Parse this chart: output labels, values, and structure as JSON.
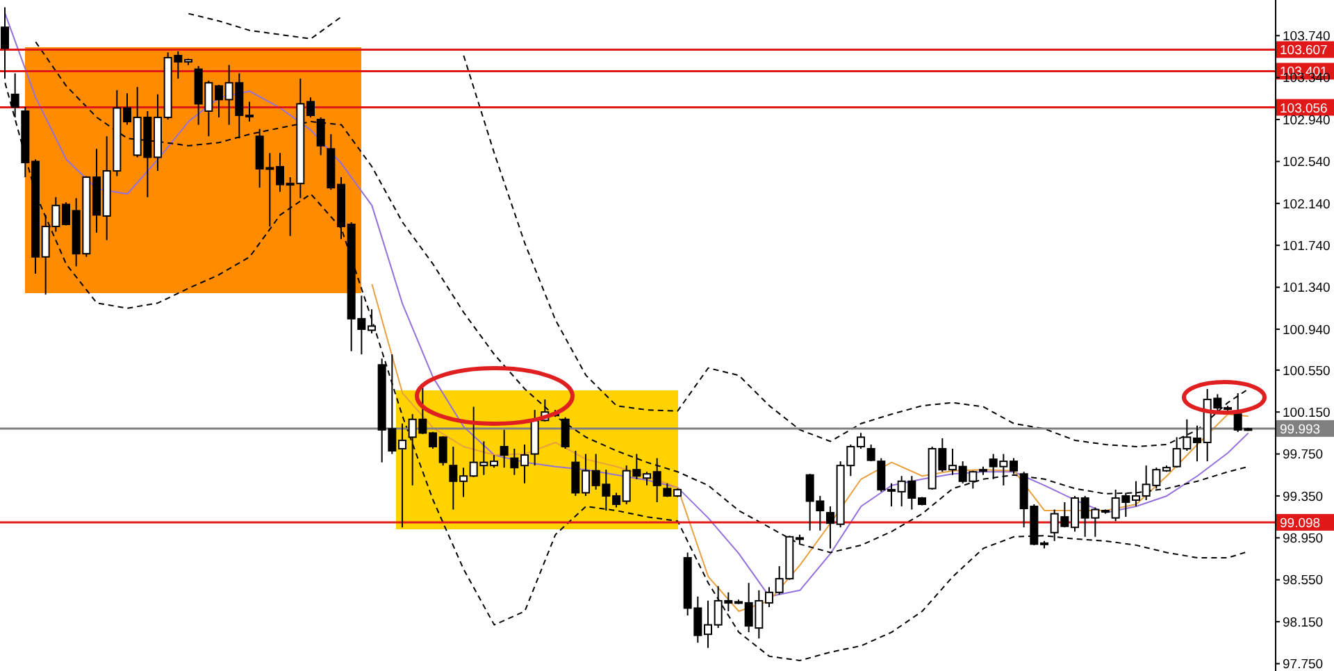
{
  "chart_data": {
    "type": "candlestick",
    "color": "#000000",
    "categories": [
      null,
      null,
      null,
      null,
      null,
      null,
      null,
      null,
      null,
      null,
      null,
      null,
      null,
      null,
      null,
      null,
      null,
      null,
      null,
      null,
      null,
      null,
      null,
      null,
      null,
      null,
      null,
      null,
      null,
      null,
      null,
      null,
      null,
      null,
      null,
      null,
      null,
      null,
      null,
      null,
      null,
      null,
      null,
      null,
      null,
      null,
      null,
      null,
      null,
      null,
      null,
      null,
      null,
      null,
      null,
      null,
      null,
      null,
      null,
      null,
      null,
      null,
      null,
      null,
      null,
      null,
      null,
      null,
      null,
      null,
      null,
      null,
      null,
      null,
      null,
      null,
      null,
      null,
      null,
      null,
      null,
      null,
      null,
      null,
      null,
      null,
      null,
      null,
      null,
      null,
      null,
      null,
      null,
      null,
      null,
      null,
      null,
      null,
      null,
      null,
      null,
      null,
      null,
      null,
      null,
      null,
      null,
      null,
      null,
      null,
      null,
      null,
      null,
      null,
      null,
      null,
      null,
      null,
      null,
      null,
      null,
      null,
      null
    ],
    "ohlc": [
      [
        103.82,
        104.01,
        103.33,
        103.62
      ],
      [
        103.18,
        103.38,
        102.96,
        103.06
      ],
      [
        103.02,
        103.06,
        102.39,
        102.53
      ],
      [
        102.54,
        102.56,
        101.47,
        101.63
      ],
      [
        101.63,
        102.03,
        101.27,
        101.92
      ],
      [
        101.92,
        102.2,
        101.87,
        102.12
      ],
      [
        102.13,
        102.15,
        101.93,
        101.94
      ],
      [
        102.07,
        102.19,
        101.54,
        101.66
      ],
      [
        101.66,
        102.4,
        101.63,
        102.39
      ],
      [
        102.39,
        102.66,
        101.86,
        102.03
      ],
      [
        102.02,
        102.78,
        101.79,
        102.45
      ],
      [
        102.45,
        103.22,
        102.4,
        103.05
      ],
      [
        103.05,
        103.19,
        102.89,
        102.92
      ],
      [
        102.6,
        103.25,
        102.58,
        102.96
      ],
      [
        102.96,
        103.02,
        102.2,
        102.58
      ],
      [
        102.58,
        103.18,
        102.45,
        102.96
      ],
      [
        102.96,
        103.58,
        102.94,
        103.53
      ],
      [
        103.55,
        103.59,
        103.33,
        103.49
      ],
      [
        103.49,
        103.52,
        103.46,
        103.51
      ],
      [
        103.42,
        103.45,
        102.89,
        103.09
      ],
      [
        103.02,
        103.31,
        102.78,
        103.29
      ],
      [
        103.26,
        103.27,
        102.96,
        103.13
      ],
      [
        103.13,
        103.46,
        102.89,
        103.29
      ],
      [
        103.29,
        103.38,
        102.76,
        102.98
      ],
      [
        102.98,
        103.11,
        102.92,
        102.97
      ],
      [
        102.78,
        102.85,
        102.29,
        102.47
      ],
      [
        102.47,
        102.62,
        101.92,
        102.48
      ],
      [
        102.49,
        102.62,
        102.25,
        102.32
      ],
      [
        102.32,
        102.39,
        101.83,
        102.33
      ],
      [
        102.33,
        103.33,
        102.19,
        103.09
      ],
      [
        103.11,
        103.15,
        102.96,
        102.98
      ],
      [
        102.94,
        102.96,
        102.6,
        102.69
      ],
      [
        102.66,
        102.8,
        102.27,
        102.29
      ],
      [
        102.32,
        102.39,
        101.8,
        101.92
      ],
      [
        101.94,
        101.96,
        100.73,
        101.04
      ],
      [
        101.04,
        101.26,
        100.7,
        100.94
      ],
      [
        100.93,
        101.13,
        100.9,
        100.97
      ],
      [
        100.6,
        100.66,
        99.67,
        99.98
      ],
      [
        99.99,
        100.7,
        99.75,
        99.78
      ],
      [
        99.8,
        100.04,
        99.05,
        99.88
      ],
      [
        99.91,
        100.13,
        99.45,
        100.08
      ],
      [
        100.08,
        100.41,
        99.94,
        99.95
      ],
      [
        99.95,
        99.96,
        99.8,
        99.82
      ],
      [
        99.91,
        99.92,
        99.64,
        99.67
      ],
      [
        99.64,
        99.82,
        99.22,
        99.49
      ],
      [
        99.49,
        99.62,
        99.34,
        99.54
      ],
      [
        99.54,
        100.2,
        99.53,
        99.67
      ],
      [
        99.64,
        99.87,
        99.55,
        99.67
      ],
      [
        99.64,
        99.74,
        99.62,
        99.68
      ],
      [
        99.82,
        99.98,
        99.62,
        99.74
      ],
      [
        99.71,
        99.8,
        99.55,
        99.62
      ],
      [
        99.64,
        99.84,
        99.47,
        99.74
      ],
      [
        99.75,
        100.17,
        99.64,
        100.07
      ],
      [
        100.07,
        100.27,
        100.06,
        100.15
      ],
      [
        100.13,
        100.17,
        100.11,
        100.12
      ],
      [
        100.08,
        100.1,
        99.8,
        99.82
      ],
      [
        99.67,
        99.78,
        99.35,
        99.38
      ],
      [
        99.38,
        99.75,
        99.35,
        99.59
      ],
      [
        99.59,
        99.75,
        99.41,
        99.45
      ],
      [
        99.46,
        99.6,
        99.21,
        99.35
      ],
      [
        99.35,
        99.38,
        99.24,
        99.27
      ],
      [
        99.3,
        99.64,
        99.27,
        99.59
      ],
      [
        99.6,
        99.75,
        99.51,
        99.54
      ],
      [
        99.52,
        99.58,
        99.45,
        99.56
      ],
      [
        99.58,
        99.71,
        99.29,
        99.45
      ],
      [
        99.42,
        99.47,
        99.34,
        99.35
      ],
      [
        99.35,
        99.42,
        99.34,
        99.41
      ],
      [
        98.76,
        98.81,
        98.21,
        98.28
      ],
      [
        98.28,
        98.39,
        97.95,
        98.02
      ],
      [
        98.03,
        98.35,
        97.9,
        98.12
      ],
      [
        98.12,
        98.49,
        98.09,
        98.35
      ],
      [
        98.35,
        98.43,
        98.25,
        98.33
      ],
      [
        98.33,
        98.36,
        98.32,
        98.34
      ],
      [
        98.33,
        98.52,
        98.05,
        98.11
      ],
      [
        98.09,
        98.45,
        97.99,
        98.35
      ],
      [
        98.33,
        98.48,
        98.29,
        98.43
      ],
      [
        98.43,
        98.68,
        98.41,
        98.56
      ],
      [
        98.56,
        98.97,
        98.55,
        98.96
      ],
      [
        98.94,
        98.98,
        98.89,
        98.95
      ],
      [
        99.55,
        99.56,
        99.02,
        99.3
      ],
      [
        99.3,
        99.35,
        99.02,
        99.21
      ],
      [
        99.19,
        99.25,
        98.85,
        99.09
      ],
      [
        99.08,
        99.68,
        99.05,
        99.64
      ],
      [
        99.64,
        99.84,
        99.54,
        99.82
      ],
      [
        99.82,
        99.95,
        99.8,
        99.91
      ],
      [
        99.8,
        99.84,
        99.68,
        99.69
      ],
      [
        99.68,
        99.71,
        99.39,
        99.41
      ],
      [
        99.41,
        99.47,
        99.25,
        99.4
      ],
      [
        99.39,
        99.54,
        99.25,
        99.49
      ],
      [
        99.49,
        99.54,
        99.22,
        99.33
      ],
      [
        99.33,
        99.34,
        99.26,
        99.27
      ],
      [
        99.42,
        99.82,
        99.41,
        99.8
      ],
      [
        99.8,
        99.9,
        99.58,
        99.6
      ],
      [
        99.6,
        99.8,
        99.55,
        99.64
      ],
      [
        99.63,
        99.68,
        99.47,
        99.49
      ],
      [
        99.49,
        99.59,
        99.42,
        99.58
      ],
      [
        99.59,
        99.63,
        99.55,
        99.6
      ],
      [
        99.7,
        99.75,
        99.51,
        99.63
      ],
      [
        99.63,
        99.75,
        99.45,
        99.68
      ],
      [
        99.68,
        99.71,
        99.56,
        99.59
      ],
      [
        99.56,
        99.58,
        99.05,
        99.23
      ],
      [
        99.25,
        99.27,
        98.88,
        98.89
      ],
      [
        98.89,
        98.92,
        98.85,
        98.9
      ],
      [
        99.0,
        99.22,
        98.92,
        99.18
      ],
      [
        99.15,
        99.29,
        99.05,
        99.06
      ],
      [
        99.05,
        99.35,
        99.01,
        99.33
      ],
      [
        99.33,
        99.35,
        98.96,
        99.14
      ],
      [
        99.14,
        99.24,
        98.96,
        99.22
      ],
      [
        99.21,
        99.22,
        99.18,
        99.2
      ],
      [
        99.14,
        99.41,
        99.11,
        99.33
      ],
      [
        99.35,
        99.38,
        99.15,
        99.29
      ],
      [
        99.31,
        99.49,
        99.25,
        99.35
      ],
      [
        99.35,
        99.64,
        99.31,
        99.46
      ],
      [
        99.45,
        99.62,
        99.42,
        99.6
      ],
      [
        99.59,
        99.64,
        99.58,
        99.62
      ],
      [
        99.63,
        99.91,
        99.62,
        99.8
      ],
      [
        99.8,
        100.08,
        99.78,
        99.91
      ],
      [
        99.9,
        100.02,
        99.68,
        99.86
      ],
      [
        99.86,
        100.37,
        99.68,
        100.27
      ],
      [
        100.28,
        100.32,
        100.16,
        100.19
      ],
      [
        100.19,
        100.21,
        100.15,
        100.18
      ],
      [
        100.13,
        100.33,
        99.96,
        99.98
      ],
      [
        99.98,
        100.0,
        99.97,
        99.99
      ]
    ],
    "series": [
      {
        "type": "line",
        "color": "#9370db",
        "line_style": "solid",
        "values": [
          103.95,
          null,
          null,
          103.15,
          null,
          null,
          102.56,
          null,
          null,
          102.28,
          null,
          null,
          102.23,
          null,
          null,
          102.56,
          null,
          null,
          102.92,
          null,
          null,
          103.15,
          null,
          null,
          103.21,
          null,
          null,
          103.05,
          null,
          null,
          102.84,
          null,
          null,
          102.52,
          null,
          null,
          102.12,
          null,
          null,
          101.18,
          null,
          null,
          100.48,
          null,
          null,
          100.01,
          null,
          null,
          99.74,
          null,
          null,
          99.67,
          null,
          null,
          99.63,
          null,
          null,
          99.6,
          null,
          null,
          99.55,
          null,
          null,
          99.5,
          null,
          null,
          99.43,
          null,
          null,
          99.14,
          null,
          null,
          98.8,
          null,
          null,
          98.39,
          null,
          null,
          98.45,
          null,
          null,
          98.8,
          null,
          null,
          99.25,
          null,
          null,
          99.45,
          null,
          null,
          99.51,
          null,
          null,
          99.56,
          null,
          null,
          99.58,
          null,
          null,
          99.58,
          null,
          null,
          99.45,
          null,
          null,
          99.31,
          null,
          null,
          99.19,
          null,
          null,
          99.25,
          null,
          null,
          99.35,
          null,
          null,
          99.54,
          null,
          null,
          99.76,
          null,
          99.95
        ]
      },
      {
        "type": "line",
        "color": "#e8a040",
        "line_style": "solid",
        "values": [
          null,
          null,
          null,
          null,
          null,
          null,
          null,
          null,
          null,
          null,
          null,
          null,
          null,
          null,
          null,
          null,
          null,
          null,
          null,
          null,
          null,
          null,
          null,
          null,
          null,
          null,
          null,
          null,
          null,
          null,
          null,
          null,
          null,
          null,
          null,
          null,
          101.37,
          null,
          null,
          100.33,
          null,
          null,
          100.0,
          null,
          null,
          99.82,
          null,
          null,
          99.74,
          null,
          null,
          99.75,
          null,
          null,
          99.86,
          null,
          null,
          99.7,
          null,
          null,
          99.63,
          null,
          null,
          99.54,
          null,
          null,
          99.43,
          null,
          null,
          98.58,
          null,
          null,
          98.25,
          null,
          null,
          98.35,
          null,
          null,
          98.69,
          null,
          null,
          99.09,
          null,
          null,
          99.51,
          null,
          null,
          99.67,
          null,
          null,
          99.54,
          null,
          null,
          99.59,
          null,
          null,
          99.6,
          null,
          null,
          99.59,
          null,
          null,
          99.21,
          null,
          null,
          99.21,
          null,
          null,
          99.21,
          null,
          null,
          99.27,
          null,
          null,
          99.54,
          null,
          null,
          99.84,
          null,
          null,
          100.13,
          null,
          100.11
        ]
      },
      {
        "type": "line",
        "color": "#000000",
        "line_style": "dashed",
        "values": [
          null,
          null,
          null,
          null,
          null,
          null,
          null,
          null,
          null,
          null,
          null,
          null,
          null,
          null,
          null,
          null,
          null,
          null,
          103.95,
          null,
          null,
          103.88,
          null,
          null,
          103.79,
          null,
          null,
          103.75,
          null,
          null,
          103.71,
          null,
          null,
          103.92,
          null,
          null,
          null,
          null,
          null,
          null,
          null,
          null,
          null,
          null,
          null,
          null,
          null,
          null,
          null,
          null,
          null,
          null,
          null,
          null,
          null,
          null,
          null,
          null,
          null,
          null,
          null,
          null,
          null,
          null,
          null,
          null,
          null,
          null,
          null,
          null,
          null,
          null,
          null,
          null,
          null,
          null,
          null,
          null,
          null,
          null,
          null,
          null,
          null,
          null,
          null,
          null,
          null,
          null,
          null,
          null,
          null,
          null,
          null,
          null,
          null,
          null,
          null,
          null,
          null,
          null,
          null,
          null,
          null,
          null,
          null,
          null,
          null,
          null,
          null,
          null,
          null,
          null,
          null,
          null,
          null,
          null,
          null,
          null,
          null,
          null,
          null,
          null,
          null
        ]
      },
      {
        "type": "line",
        "color": "#000000",
        "line_style": "dashed",
        "values": [
          null,
          null,
          null,
          null,
          null,
          null,
          null,
          null,
          null,
          null,
          null,
          null,
          null,
          null,
          null,
          null,
          null,
          null,
          null,
          null,
          null,
          null,
          null,
          null,
          null,
          null,
          null,
          null,
          null,
          null,
          null,
          null,
          null,
          null,
          null,
          null,
          null,
          null,
          null,
          null,
          null,
          null,
          null,
          null,
          null,
          103.55,
          null,
          null,
          102.62,
          null,
          null,
          101.76,
          null,
          null,
          101.03,
          null,
          null,
          100.5,
          null,
          null,
          100.21,
          null,
          null,
          100.17,
          null,
          null,
          100.16,
          null,
          null,
          100.57,
          null,
          null,
          100.5,
          null,
          null,
          100.21,
          null,
          null,
          99.98,
          null,
          null,
          99.87,
          null,
          null,
          100.04,
          null,
          null,
          100.13,
          null,
          null,
          100.21,
          null,
          null,
          100.24,
          null,
          null,
          100.2,
          null,
          null,
          100.04,
          null,
          null,
          99.99,
          null,
          null,
          99.88,
          null,
          null,
          99.84,
          null,
          null,
          99.82,
          null,
          null,
          99.84,
          null,
          null,
          99.98,
          null,
          null,
          100.24,
          null,
          100.37
        ]
      },
      {
        "type": "line",
        "color": "#000000",
        "line_style": "dashed",
        "values": [
          null,
          null,
          null,
          103.68,
          null,
          null,
          103.26,
          null,
          null,
          102.96,
          null,
          null,
          102.76,
          null,
          null,
          102.73,
          null,
          null,
          102.69,
          null,
          null,
          102.72,
          null,
          null,
          102.8,
          null,
          null,
          102.86,
          null,
          null,
          102.92,
          null,
          null,
          102.89,
          null,
          null,
          102.49,
          null,
          null,
          101.96,
          null,
          null,
          101.56,
          null,
          null,
          101.1,
          null,
          null,
          100.7,
          null,
          null,
          100.37,
          null,
          null,
          100.11,
          null,
          null,
          99.91,
          null,
          null,
          99.78,
          null,
          null,
          99.67,
          null,
          null,
          99.58,
          null,
          null,
          99.45,
          null,
          null,
          99.21,
          null,
          null,
          99.05,
          null,
          null,
          98.89,
          null,
          null,
          98.81,
          null,
          null,
          98.88,
          null,
          null,
          99.01,
          null,
          null,
          99.18,
          null,
          null,
          99.42,
          null,
          null,
          99.51,
          null,
          null,
          99.55,
          null,
          null,
          99.51,
          null,
          null,
          99.42,
          null,
          null,
          99.37,
          null,
          null,
          99.38,
          null,
          null,
          99.42,
          null,
          null,
          99.49,
          null,
          null,
          99.58,
          null,
          99.63
        ]
      },
      {
        "type": "line",
        "color": "#000000",
        "line_style": "dashed",
        "values": [
          103.29,
          null,
          null,
          102.23,
          null,
          null,
          101.56,
          null,
          null,
          101.19,
          null,
          null,
          101.14,
          null,
          null,
          101.19,
          null,
          null,
          101.33,
          null,
          null,
          101.46,
          null,
          null,
          101.63,
          null,
          null,
          102.03,
          null,
          null,
          102.23,
          null,
          null,
          101.9,
          null,
          null,
          101.03,
          null,
          null,
          100.11,
          null,
          null,
          99.31,
          null,
          null,
          98.65,
          null,
          null,
          98.12,
          null,
          null,
          98.25,
          null,
          null,
          98.98,
          null,
          null,
          99.25,
          null,
          null,
          99.21,
          null,
          null,
          99.15,
          null,
          null,
          99.11,
          null,
          null,
          98.52,
          null,
          null,
          98.05,
          null,
          null,
          97.82,
          null,
          null,
          97.78,
          null,
          null,
          97.86,
          null,
          null,
          97.92,
          null,
          null,
          98.05,
          null,
          null,
          98.25,
          null,
          null,
          98.58,
          null,
          null,
          98.85,
          null,
          null,
          98.96,
          null,
          null,
          98.97,
          null,
          null,
          98.94,
          null,
          null,
          98.92,
          null,
          null,
          98.88,
          null,
          null,
          98.81,
          null,
          null,
          98.76,
          null,
          null,
          98.76,
          null,
          98.82
        ]
      }
    ],
    "ylim": [
      97.68,
      104.08
    ],
    "yticks": [
      {
        "value": 97.75,
        "label": "97.750"
      },
      {
        "value": 98.15,
        "label": "98.150"
      },
      {
        "value": 98.55,
        "label": "98.550"
      },
      {
        "value": 98.95,
        "label": "98.950"
      },
      {
        "value": 99.35,
        "label": "99.350"
      },
      {
        "value": 99.75,
        "label": "99.750"
      },
      {
        "value": 100.15,
        "label": "100.150"
      },
      {
        "value": 100.55,
        "label": "100.550"
      },
      {
        "value": 100.94,
        "label": "100.940"
      },
      {
        "value": 101.34,
        "label": "101.340"
      },
      {
        "value": 101.74,
        "label": "101.740"
      },
      {
        "value": 102.14,
        "label": "102.140"
      },
      {
        "value": 102.54,
        "label": "102.540"
      },
      {
        "value": 102.94,
        "label": "102.940"
      },
      {
        "value": 103.34,
        "label": "103.340"
      },
      {
        "value": 103.74,
        "label": "103.740"
      }
    ],
    "ref_lines": [
      {
        "axis": "y",
        "value": 103.607,
        "label": "103.607",
        "color": "#e01818"
      },
      {
        "axis": "y",
        "value": 103.401,
        "label": "103.401",
        "color": "#e01818"
      },
      {
        "axis": "y",
        "value": 103.056,
        "label": "103.056",
        "color": "#e01818"
      },
      {
        "axis": "y",
        "value": 99.993,
        "label": "99.993",
        "color": "#808080"
      },
      {
        "axis": "y",
        "value": 99.098,
        "label": "99.098",
        "color": "#e01818"
      }
    ],
    "tick_labels": "y",
    "legend": false,
    "marker": "none"
  }
}
